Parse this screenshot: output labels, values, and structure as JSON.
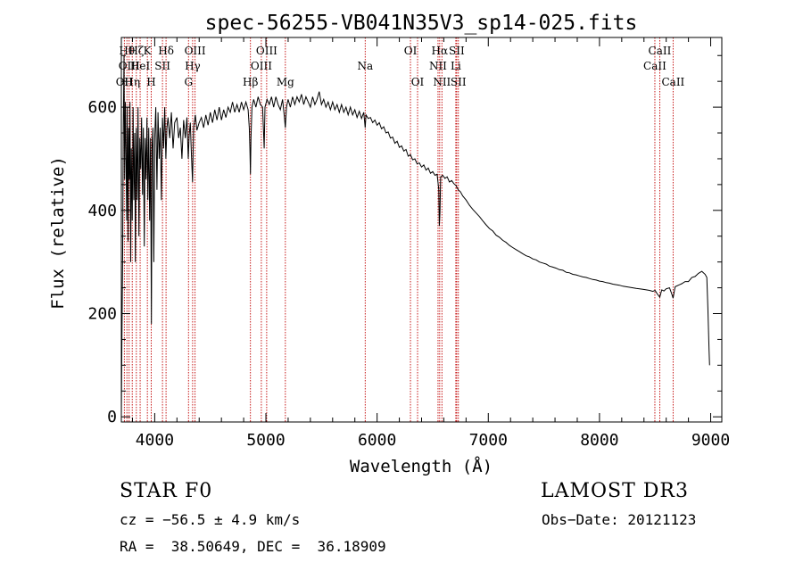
{
  "chart_data": {
    "type": "line",
    "title": "spec-56255-VB041N35V3_sp14-025.fits",
    "xlabel": "Wavelength (Å)",
    "ylabel": "Flux (relative)",
    "xlim": [
      3700,
      9100
    ],
    "ylim": [
      -10,
      735
    ],
    "xticks": [
      4000,
      5000,
      6000,
      7000,
      8000,
      9000
    ],
    "yticks": [
      0,
      200,
      400,
      600
    ],
    "x_minor_step": 200,
    "y_minor_step": 50,
    "series": [
      {
        "name": "spectrum",
        "points": [
          [
            3700,
            0
          ],
          [
            3705,
            140
          ],
          [
            3712,
            320
          ],
          [
            3718,
            560
          ],
          [
            3724,
            700
          ],
          [
            3730,
            460
          ],
          [
            3736,
            610
          ],
          [
            3742,
            520
          ],
          [
            3748,
            380
          ],
          [
            3754,
            600
          ],
          [
            3760,
            340
          ],
          [
            3766,
            560
          ],
          [
            3772,
            460
          ],
          [
            3778,
            610
          ],
          [
            3784,
            300
          ],
          [
            3790,
            520
          ],
          [
            3798,
            380
          ],
          [
            3806,
            600
          ],
          [
            3812,
            420
          ],
          [
            3820,
            550
          ],
          [
            3826,
            300
          ],
          [
            3834,
            560
          ],
          [
            3842,
            420
          ],
          [
            3850,
            600
          ],
          [
            3858,
            350
          ],
          [
            3866,
            540
          ],
          [
            3874,
            480
          ],
          [
            3882,
            580
          ],
          [
            3890,
            430
          ],
          [
            3898,
            560
          ],
          [
            3906,
            330
          ],
          [
            3914,
            540
          ],
          [
            3922,
            460
          ],
          [
            3930,
            580
          ],
          [
            3938,
            420
          ],
          [
            3946,
            560
          ],
          [
            3954,
            380
          ],
          [
            3962,
            540
          ],
          [
            3970,
            180
          ],
          [
            3976,
            520
          ],
          [
            3984,
            560
          ],
          [
            3992,
            300
          ],
          [
            4000,
            540
          ],
          [
            4010,
            600
          ],
          [
            4020,
            440
          ],
          [
            4030,
            590
          ],
          [
            4040,
            500
          ],
          [
            4050,
            560
          ],
          [
            4060,
            420
          ],
          [
            4070,
            580
          ],
          [
            4080,
            520
          ],
          [
            4090,
            600
          ],
          [
            4100,
            500
          ],
          [
            4110,
            560
          ],
          [
            4120,
            580
          ],
          [
            4135,
            540
          ],
          [
            4150,
            590
          ],
          [
            4165,
            520
          ],
          [
            4180,
            570
          ],
          [
            4200,
            580
          ],
          [
            4215,
            540
          ],
          [
            4230,
            560
          ],
          [
            4245,
            500
          ],
          [
            4260,
            575
          ],
          [
            4275,
            540
          ],
          [
            4290,
            580
          ],
          [
            4302,
            500
          ],
          [
            4310,
            545
          ],
          [
            4320,
            570
          ],
          [
            4330,
            510
          ],
          [
            4340,
            455
          ],
          [
            4350,
            560
          ],
          [
            4365,
            585
          ],
          [
            4380,
            555
          ],
          [
            4400,
            570
          ],
          [
            4420,
            580
          ],
          [
            4440,
            560
          ],
          [
            4460,
            585
          ],
          [
            4480,
            565
          ],
          [
            4500,
            590
          ],
          [
            4520,
            570
          ],
          [
            4540,
            595
          ],
          [
            4560,
            575
          ],
          [
            4580,
            600
          ],
          [
            4600,
            575
          ],
          [
            4620,
            595
          ],
          [
            4640,
            580
          ],
          [
            4660,
            600
          ],
          [
            4680,
            590
          ],
          [
            4700,
            610
          ],
          [
            4720,
            590
          ],
          [
            4740,
            605
          ],
          [
            4760,
            590
          ],
          [
            4780,
            610
          ],
          [
            4800,
            595
          ],
          [
            4820,
            610
          ],
          [
            4840,
            595
          ],
          [
            4851,
            560
          ],
          [
            4856,
            520
          ],
          [
            4861,
            470
          ],
          [
            4866,
            540
          ],
          [
            4875,
            600
          ],
          [
            4890,
            615
          ],
          [
            4910,
            600
          ],
          [
            4930,
            620
          ],
          [
            4950,
            605
          ],
          [
            4970,
            600
          ],
          [
            4985,
            520
          ],
          [
            4992,
            600
          ],
          [
            5010,
            615
          ],
          [
            5030,
            605
          ],
          [
            5050,
            620
          ],
          [
            5070,
            600
          ],
          [
            5090,
            620
          ],
          [
            5110,
            605
          ],
          [
            5130,
            595
          ],
          [
            5150,
            615
          ],
          [
            5167,
            580
          ],
          [
            5175,
            560
          ],
          [
            5185,
            600
          ],
          [
            5200,
            615
          ],
          [
            5220,
            600
          ],
          [
            5240,
            620
          ],
          [
            5260,
            605
          ],
          [
            5280,
            620
          ],
          [
            5300,
            610
          ],
          [
            5320,
            625
          ],
          [
            5340,
            605
          ],
          [
            5360,
            620
          ],
          [
            5380,
            610
          ],
          [
            5400,
            600
          ],
          [
            5420,
            620
          ],
          [
            5440,
            605
          ],
          [
            5460,
            615
          ],
          [
            5480,
            630
          ],
          [
            5500,
            605
          ],
          [
            5520,
            615
          ],
          [
            5540,
            600
          ],
          [
            5560,
            610
          ],
          [
            5580,
            595
          ],
          [
            5600,
            610
          ],
          [
            5620,
            595
          ],
          [
            5640,
            605
          ],
          [
            5660,
            590
          ],
          [
            5680,
            605
          ],
          [
            5700,
            590
          ],
          [
            5720,
            600
          ],
          [
            5740,
            585
          ],
          [
            5760,
            600
          ],
          [
            5780,
            585
          ],
          [
            5800,
            595
          ],
          [
            5820,
            580
          ],
          [
            5840,
            592
          ],
          [
            5860,
            578
          ],
          [
            5880,
            590
          ],
          [
            5893,
            560
          ],
          [
            5900,
            585
          ],
          [
            5920,
            578
          ],
          [
            5940,
            580
          ],
          [
            5960,
            570
          ],
          [
            5980,
            575
          ],
          [
            6000,
            565
          ],
          [
            6020,
            570
          ],
          [
            6040,
            558
          ],
          [
            6060,
            562
          ],
          [
            6080,
            550
          ],
          [
            6100,
            552
          ],
          [
            6120,
            540
          ],
          [
            6140,
            542
          ],
          [
            6160,
            530
          ],
          [
            6180,
            534
          ],
          [
            6200,
            522
          ],
          [
            6220,
            525
          ],
          [
            6240,
            515
          ],
          [
            6260,
            518
          ],
          [
            6280,
            505
          ],
          [
            6300,
            508
          ],
          [
            6320,
            498
          ],
          [
            6340,
            500
          ],
          [
            6360,
            490
          ],
          [
            6380,
            492
          ],
          [
            6400,
            484
          ],
          [
            6420,
            488
          ],
          [
            6440,
            478
          ],
          [
            6460,
            482
          ],
          [
            6480,
            472
          ],
          [
            6500,
            475
          ],
          [
            6520,
            468
          ],
          [
            6540,
            470
          ],
          [
            6555,
            440
          ],
          [
            6560,
            370
          ],
          [
            6565,
            395
          ],
          [
            6572,
            465
          ],
          [
            6590,
            468
          ],
          [
            6610,
            462
          ],
          [
            6630,
            465
          ],
          [
            6650,
            455
          ],
          [
            6670,
            458
          ],
          [
            6690,
            452
          ],
          [
            6710,
            448
          ],
          [
            6730,
            440
          ],
          [
            6750,
            436
          ],
          [
            6770,
            428
          ],
          [
            6800,
            420
          ],
          [
            6830,
            410
          ],
          [
            6860,
            402
          ],
          [
            6890,
            395
          ],
          [
            6920,
            388
          ],
          [
            6950,
            380
          ],
          [
            6980,
            372
          ],
          [
            7010,
            365
          ],
          [
            7040,
            360
          ],
          [
            7070,
            352
          ],
          [
            7100,
            348
          ],
          [
            7130,
            342
          ],
          [
            7160,
            338
          ],
          [
            7190,
            332
          ],
          [
            7220,
            328
          ],
          [
            7250,
            324
          ],
          [
            7280,
            320
          ],
          [
            7310,
            316
          ],
          [
            7340,
            312
          ],
          [
            7370,
            310
          ],
          [
            7400,
            306
          ],
          [
            7430,
            304
          ],
          [
            7460,
            300
          ],
          [
            7490,
            298
          ],
          [
            7520,
            296
          ],
          [
            7550,
            292
          ],
          [
            7580,
            290
          ],
          [
            7610,
            288
          ],
          [
            7640,
            285
          ],
          [
            7670,
            284
          ],
          [
            7700,
            280
          ],
          [
            7730,
            279
          ],
          [
            7760,
            276
          ],
          [
            7790,
            275
          ],
          [
            7820,
            273
          ],
          [
            7850,
            271
          ],
          [
            7880,
            270
          ],
          [
            7910,
            268
          ],
          [
            7940,
            266
          ],
          [
            7970,
            265
          ],
          [
            8000,
            263
          ],
          [
            8030,
            262
          ],
          [
            8060,
            260
          ],
          [
            8090,
            259
          ],
          [
            8120,
            257
          ],
          [
            8150,
            256
          ],
          [
            8180,
            255
          ],
          [
            8210,
            253
          ],
          [
            8240,
            252
          ],
          [
            8270,
            251
          ],
          [
            8300,
            250
          ],
          [
            8330,
            249
          ],
          [
            8360,
            248
          ],
          [
            8390,
            247
          ],
          [
            8420,
            246
          ],
          [
            8450,
            245
          ],
          [
            8480,
            243
          ],
          [
            8500,
            245
          ],
          [
            8520,
            238
          ],
          [
            8542,
            232
          ],
          [
            8560,
            246
          ],
          [
            8580,
            244
          ],
          [
            8600,
            248
          ],
          [
            8630,
            250
          ],
          [
            8650,
            238
          ],
          [
            8662,
            230
          ],
          [
            8680,
            252
          ],
          [
            8710,
            255
          ],
          [
            8740,
            258
          ],
          [
            8770,
            262
          ],
          [
            8800,
            262
          ],
          [
            8830,
            270
          ],
          [
            8860,
            272
          ],
          [
            8890,
            278
          ],
          [
            8920,
            282
          ],
          [
            8950,
            276
          ],
          [
            8965,
            270
          ],
          [
            8975,
            210
          ],
          [
            8985,
            130
          ],
          [
            8990,
            100
          ]
        ]
      }
    ],
    "lines": [
      {
        "wl": 3727,
        "label": "OII",
        "row": 2
      },
      {
        "wl": 3750,
        "label": "Hθ",
        "row": 0
      },
      {
        "wl": 3770,
        "label": "OIII",
        "row": 1
      },
      {
        "wl": 3798,
        "label": "Hη",
        "row": 2
      },
      {
        "wl": 3835,
        "label": "Hζ",
        "row": 0
      },
      {
        "wl": 3869,
        "label": "HeI",
        "row": 1
      },
      {
        "wl": 3934,
        "label": "K",
        "row": 0
      },
      {
        "wl": 3969,
        "label": "H",
        "row": 2
      },
      {
        "wl": 4070,
        "label": "SII",
        "row": 1
      },
      {
        "wl": 4102,
        "label": "Hδ",
        "row": 0
      },
      {
        "wl": 4304,
        "label": "G",
        "row": 2
      },
      {
        "wl": 4341,
        "label": "Hγ",
        "row": 1
      },
      {
        "wl": 4363,
        "label": "OIII",
        "row": 0
      },
      {
        "wl": 4861,
        "label": "Hβ",
        "row": 2
      },
      {
        "wl": 4959,
        "label": "OIII",
        "row": 1
      },
      {
        "wl": 5007,
        "label": "OIII",
        "row": 0
      },
      {
        "wl": 5175,
        "label": "Mg",
        "row": 2
      },
      {
        "wl": 5893,
        "label": "Na",
        "row": 1
      },
      {
        "wl": 6300,
        "label": "OI",
        "row": 0
      },
      {
        "wl": 6364,
        "label": "OI",
        "row": 2
      },
      {
        "wl": 6548,
        "label": "NII",
        "row": 1
      },
      {
        "wl": 6563,
        "label": "Hα",
        "row": 0
      },
      {
        "wl": 6583,
        "label": "NII",
        "row": 2
      },
      {
        "wl": 6708,
        "label": "Li",
        "row": 1
      },
      {
        "wl": 6716,
        "label": "SII",
        "row": 0
      },
      {
        "wl": 6731,
        "label": "SII",
        "row": 2
      },
      {
        "wl": 8498,
        "label": "CaII",
        "row": 1
      },
      {
        "wl": 8542,
        "label": "CaII",
        "row": 0
      },
      {
        "wl": 8662,
        "label": "CaII",
        "row": 2
      }
    ],
    "line_color": "#c00000"
  },
  "info": {
    "object": "STAR    F0",
    "survey": "LAMOST DR3",
    "redshift": "cz = −56.5 ± 4.9 km/s",
    "obs_date": "Obs−Date: 20121123",
    "coords": "RA =  38.50649, DEC =  36.18909"
  }
}
